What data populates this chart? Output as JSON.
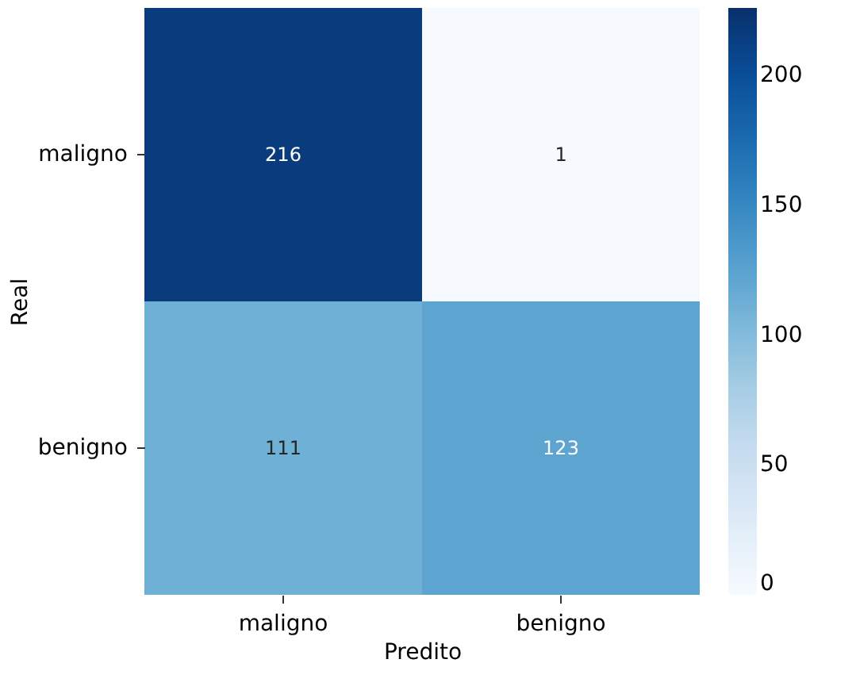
{
  "chart_data": {
    "type": "heatmap",
    "xlabel": "Predito",
    "ylabel": "Real",
    "categories": [
      "maligno",
      "benigno"
    ],
    "y_categories": [
      "maligno",
      "benigno"
    ],
    "cells": [
      [
        216,
        1
      ],
      [
        111,
        123
      ]
    ],
    "clim": [
      0,
      226
    ],
    "cticks": [
      0,
      50,
      100,
      150,
      200
    ],
    "data_labels": true
  }
}
